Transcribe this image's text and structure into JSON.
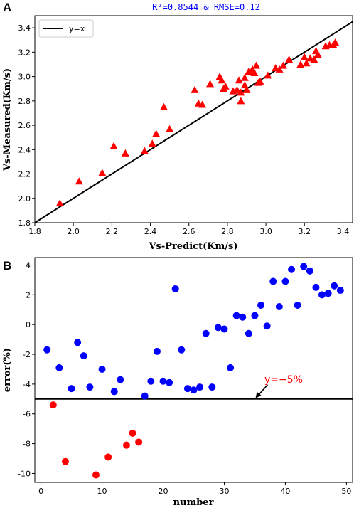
{
  "colors": {
    "axis": "#000000",
    "triangles": "#ff0000",
    "blue_points": "#0000ff",
    "red_points": "#ff0000",
    "metric_text": "#0000ff",
    "annotation_text": "#ff0000"
  },
  "chart_data": [
    {
      "panel": "A",
      "type": "scatter",
      "title": "R²=0.8544 & RMSE=0.12",
      "xlabel": "Vs-Predict(Km/s)",
      "ylabel": "Vs-Measured(Km/s)",
      "xlim": [
        1.8,
        3.45
      ],
      "ylim": [
        1.8,
        3.5
      ],
      "xticks": [
        "1.8",
        "2.0",
        "2.2",
        "2.4",
        "2.6",
        "2.8",
        "3.0",
        "3.2",
        "3.4"
      ],
      "yticks": [
        "1.8",
        "2.0",
        "2.2",
        "2.4",
        "2.6",
        "2.8",
        "3.0",
        "3.2",
        "3.4"
      ],
      "legend": {
        "position": "top-left",
        "entries": [
          "y=x"
        ]
      },
      "reference_line": {
        "name": "y=x",
        "from": [
          1.8,
          1.8
        ],
        "to": [
          3.45,
          3.45
        ]
      },
      "marker": "triangle",
      "grid": false,
      "points": [
        [
          1.93,
          1.96
        ],
        [
          2.03,
          2.14
        ],
        [
          2.15,
          2.21
        ],
        [
          2.21,
          2.43
        ],
        [
          2.27,
          2.37
        ],
        [
          2.37,
          2.39
        ],
        [
          2.41,
          2.45
        ],
        [
          2.43,
          2.53
        ],
        [
          2.47,
          2.75
        ],
        [
          2.5,
          2.57
        ],
        [
          2.63,
          2.89
        ],
        [
          2.65,
          2.78
        ],
        [
          2.67,
          2.77
        ],
        [
          2.71,
          2.94
        ],
        [
          2.76,
          3.0
        ],
        [
          2.77,
          2.97
        ],
        [
          2.78,
          2.9
        ],
        [
          2.79,
          2.92
        ],
        [
          2.83,
          2.88
        ],
        [
          2.85,
          2.89
        ],
        [
          2.86,
          2.97
        ],
        [
          2.87,
          2.8
        ],
        [
          2.87,
          2.87
        ],
        [
          2.89,
          2.93
        ],
        [
          2.89,
          2.99
        ],
        [
          2.9,
          2.89
        ],
        [
          2.91,
          3.04
        ],
        [
          2.93,
          3.06
        ],
        [
          2.94,
          3.03
        ],
        [
          2.95,
          3.09
        ],
        [
          2.96,
          2.95
        ],
        [
          2.97,
          2.96
        ],
        [
          3.01,
          3.01
        ],
        [
          3.05,
          3.07
        ],
        [
          3.07,
          3.06
        ],
        [
          3.09,
          3.09
        ],
        [
          3.12,
          3.14
        ],
        [
          3.18,
          3.1
        ],
        [
          3.2,
          3.16
        ],
        [
          3.21,
          3.11
        ],
        [
          3.23,
          3.15
        ],
        [
          3.25,
          3.14
        ],
        [
          3.26,
          3.21
        ],
        [
          3.27,
          3.18
        ],
        [
          3.31,
          3.25
        ],
        [
          3.33,
          3.26
        ],
        [
          3.35,
          3.26
        ],
        [
          3.36,
          3.28
        ]
      ]
    },
    {
      "panel": "B",
      "type": "scatter",
      "xlabel": "number",
      "ylabel": "error(%)",
      "xlim": [
        -1,
        51
      ],
      "ylim": [
        -10.6,
        4.5
      ],
      "xticks": [
        "0",
        "10",
        "20",
        "30",
        "40",
        "50"
      ],
      "yticks": [
        "-10",
        "-8",
        "-6",
        "-4",
        "-2",
        "0",
        "2",
        "4"
      ],
      "hline": {
        "y": -5
      },
      "annotation": {
        "text": "y=−5%",
        "arrow_to": [
          35,
          -5.0
        ]
      },
      "grid": false,
      "series": [
        {
          "color": "blue",
          "points": [
            [
              1,
              -1.7
            ],
            [
              3,
              -2.9
            ],
            [
              5,
              -4.3
            ],
            [
              6,
              -1.2
            ],
            [
              7,
              -2.1
            ],
            [
              8,
              -4.2
            ],
            [
              10,
              -3.0
            ],
            [
              12,
              -4.5
            ],
            [
              13,
              -3.7
            ],
            [
              17,
              -4.8
            ],
            [
              18,
              -3.8
            ],
            [
              19,
              -1.8
            ],
            [
              20,
              -3.8
            ],
            [
              21,
              -3.9
            ],
            [
              22,
              2.4
            ],
            [
              23,
              -1.7
            ],
            [
              24,
              -4.3
            ],
            [
              25,
              -4.4
            ],
            [
              26,
              -4.2
            ],
            [
              27,
              -0.6
            ],
            [
              28,
              -4.2
            ],
            [
              29,
              -0.2
            ],
            [
              30,
              -0.3
            ],
            [
              31,
              -2.9
            ],
            [
              32,
              0.6
            ],
            [
              33,
              0.5
            ],
            [
              34,
              -0.6
            ],
            [
              35,
              0.6
            ],
            [
              36,
              1.3
            ],
            [
              37,
              -0.1
            ],
            [
              38,
              2.9
            ],
            [
              39,
              1.2
            ],
            [
              40,
              2.9
            ],
            [
              41,
              3.7
            ],
            [
              42,
              1.3
            ],
            [
              43,
              3.9
            ],
            [
              44,
              3.6
            ],
            [
              45,
              2.5
            ],
            [
              46,
              2.0
            ],
            [
              47,
              2.1
            ],
            [
              48,
              2.6
            ],
            [
              49,
              2.3
            ]
          ]
        },
        {
          "color": "red",
          "points": [
            [
              2,
              -5.4
            ],
            [
              4,
              -9.2
            ],
            [
              9,
              -10.1
            ],
            [
              11,
              -8.9
            ],
            [
              14,
              -8.1
            ],
            [
              15,
              -7.3
            ],
            [
              16,
              -7.9
            ]
          ]
        }
      ]
    }
  ]
}
